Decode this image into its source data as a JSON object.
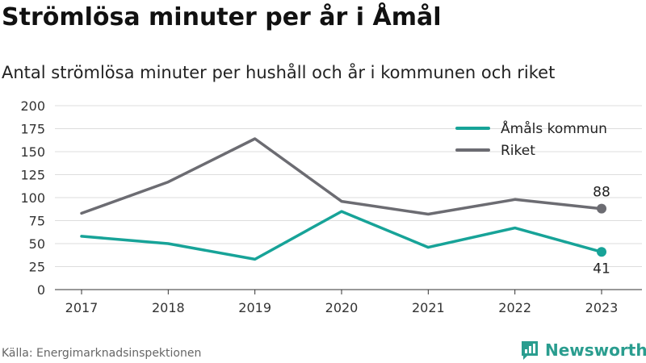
{
  "title": "Strömlösa minuter per år i Åmål",
  "subtitle": "Antal strömlösa minuter per hushåll och år i kommunen och riket",
  "source": "Källa: Energimarknadsinspektionen",
  "brand": {
    "name": "Newsworthy",
    "icon": "newsworthy-logo-icon",
    "color": "#2a9d8f"
  },
  "colors": {
    "amal": "#17a398",
    "riket": "#6c6c72",
    "grid": "#dddddd",
    "axis": "#333333"
  },
  "chart_data": {
    "type": "line",
    "title": "Strömlösa minuter per år i Åmål",
    "subtitle": "Antal strömlösa minuter per hushåll och år i kommunen och riket",
    "x": [
      "2017",
      "2018",
      "2019",
      "2020",
      "2021",
      "2022",
      "2023"
    ],
    "ylim": [
      0,
      200
    ],
    "yticks": [
      0,
      25,
      50,
      75,
      100,
      125,
      150,
      175,
      200
    ],
    "grid": true,
    "legend_position": "top-right",
    "series": [
      {
        "name": "Åmåls kommun",
        "color": "#17a398",
        "values": [
          58,
          50,
          33,
          85,
          46,
          67,
          41
        ],
        "end_label": "41"
      },
      {
        "name": "Riket",
        "color": "#6c6c72",
        "values": [
          83,
          117,
          164,
          96,
          82,
          98,
          88
        ],
        "end_label": "88"
      }
    ]
  }
}
